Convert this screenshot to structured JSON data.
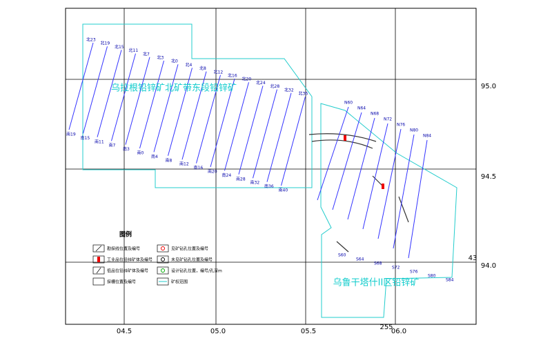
{
  "axes": {
    "x_labels": [
      "04.5",
      "05.0",
      "05.5",
      "06.0"
    ],
    "y_labels": [
      "95.0",
      "94.5",
      "94.0"
    ],
    "corner_labels": [
      "43",
      "255"
    ]
  },
  "areas": {
    "north_title": "乌拉根铅锌矿北矿带东段铅锌矿",
    "south_title": "乌鲁干塔什II区铅锌矿"
  },
  "north_lines": [
    {
      "top": "北23",
      "bottom": "南19"
    },
    {
      "top": "北19",
      "bottom": "南15"
    },
    {
      "top": "北15",
      "bottom": "南11"
    },
    {
      "top": "北11",
      "bottom": "南7"
    },
    {
      "top": "北7",
      "bottom": "南3"
    },
    {
      "top": "北3",
      "bottom": "南0"
    },
    {
      "top": "北0",
      "bottom": "南4"
    },
    {
      "top": "北4",
      "bottom": "南8"
    },
    {
      "top": "北8",
      "bottom": "南12"
    },
    {
      "top": "北12",
      "bottom": "南16"
    },
    {
      "top": "北16",
      "bottom": "南20"
    },
    {
      "top": "北20",
      "bottom": "南24"
    },
    {
      "top": "北24",
      "bottom": "南28"
    },
    {
      "top": "北28",
      "bottom": "南32"
    },
    {
      "top": "北32",
      "bottom": "南36"
    },
    {
      "top": "北36",
      "bottom": "南40"
    }
  ],
  "south_lines": [
    {
      "top": "N60",
      "bottom": "S60"
    },
    {
      "top": "N64",
      "bottom": "S64"
    },
    {
      "top": "N68",
      "bottom": "S68"
    },
    {
      "top": "N72",
      "bottom": "S72"
    },
    {
      "top": "N76",
      "bottom": "S76"
    },
    {
      "top": "N80",
      "bottom": "S80"
    },
    {
      "top": "N84",
      "bottom": "S84"
    }
  ],
  "legend": {
    "title": "图例",
    "items": [
      "勘探线位置及编号",
      "工业品位铅锌矿体及编号",
      "低品位铅锌矿体及编号",
      "探槽位置及编号",
      "见矿钻孔位置及编号",
      "未见矿钻孔位置及编号",
      "设计钻孔位置，编号/孔深m",
      "矿权范围"
    ]
  }
}
